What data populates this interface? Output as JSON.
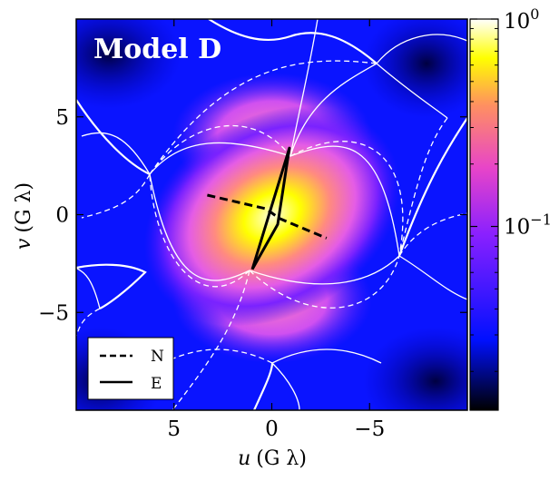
{
  "chart_data": {
    "type": "heatmap",
    "title": "Model D",
    "xlabel_var": "u",
    "xlabel_unit": "(G λ)",
    "ylabel_var": "v",
    "ylabel_unit": "(G λ)",
    "xlim": [
      10,
      -10
    ],
    "ylim": [
      -10,
      10
    ],
    "x_ticks": [
      5,
      0,
      -5
    ],
    "x_tick_labels": [
      "5",
      "0",
      "−5"
    ],
    "y_ticks": [
      5,
      0,
      -5
    ],
    "y_tick_labels": [
      "5",
      "0",
      "−5"
    ],
    "colorbar": {
      "scale": "log",
      "range": [
        0.013,
        1.0
      ],
      "tick_values": [
        1.0,
        0.1
      ],
      "tick_base": "10",
      "tick_exponents": [
        "0",
        "−1"
      ],
      "colormap": [
        "#000000",
        "#0000ff",
        "#a020ff",
        "#ff69b4",
        "#ffff00",
        "#ffffff"
      ]
    },
    "series": [
      {
        "name": "N",
        "style": "dashed",
        "color": "#000000",
        "points": [
          [
            3.3,
            1.0
          ],
          [
            0.3,
            0.3
          ],
          [
            -0.4,
            -0.2
          ],
          [
            -2.8,
            -1.2
          ]
        ]
      },
      {
        "name": "E",
        "style": "solid",
        "color": "#000000",
        "points": [
          [
            1.0,
            -2.8
          ],
          [
            -0.9,
            3.4
          ],
          [
            -0.3,
            -0.5
          ],
          [
            1.0,
            -2.8
          ]
        ]
      }
    ],
    "legend": {
      "position": "bottom-left",
      "entries": [
        "N",
        "E"
      ]
    }
  }
}
